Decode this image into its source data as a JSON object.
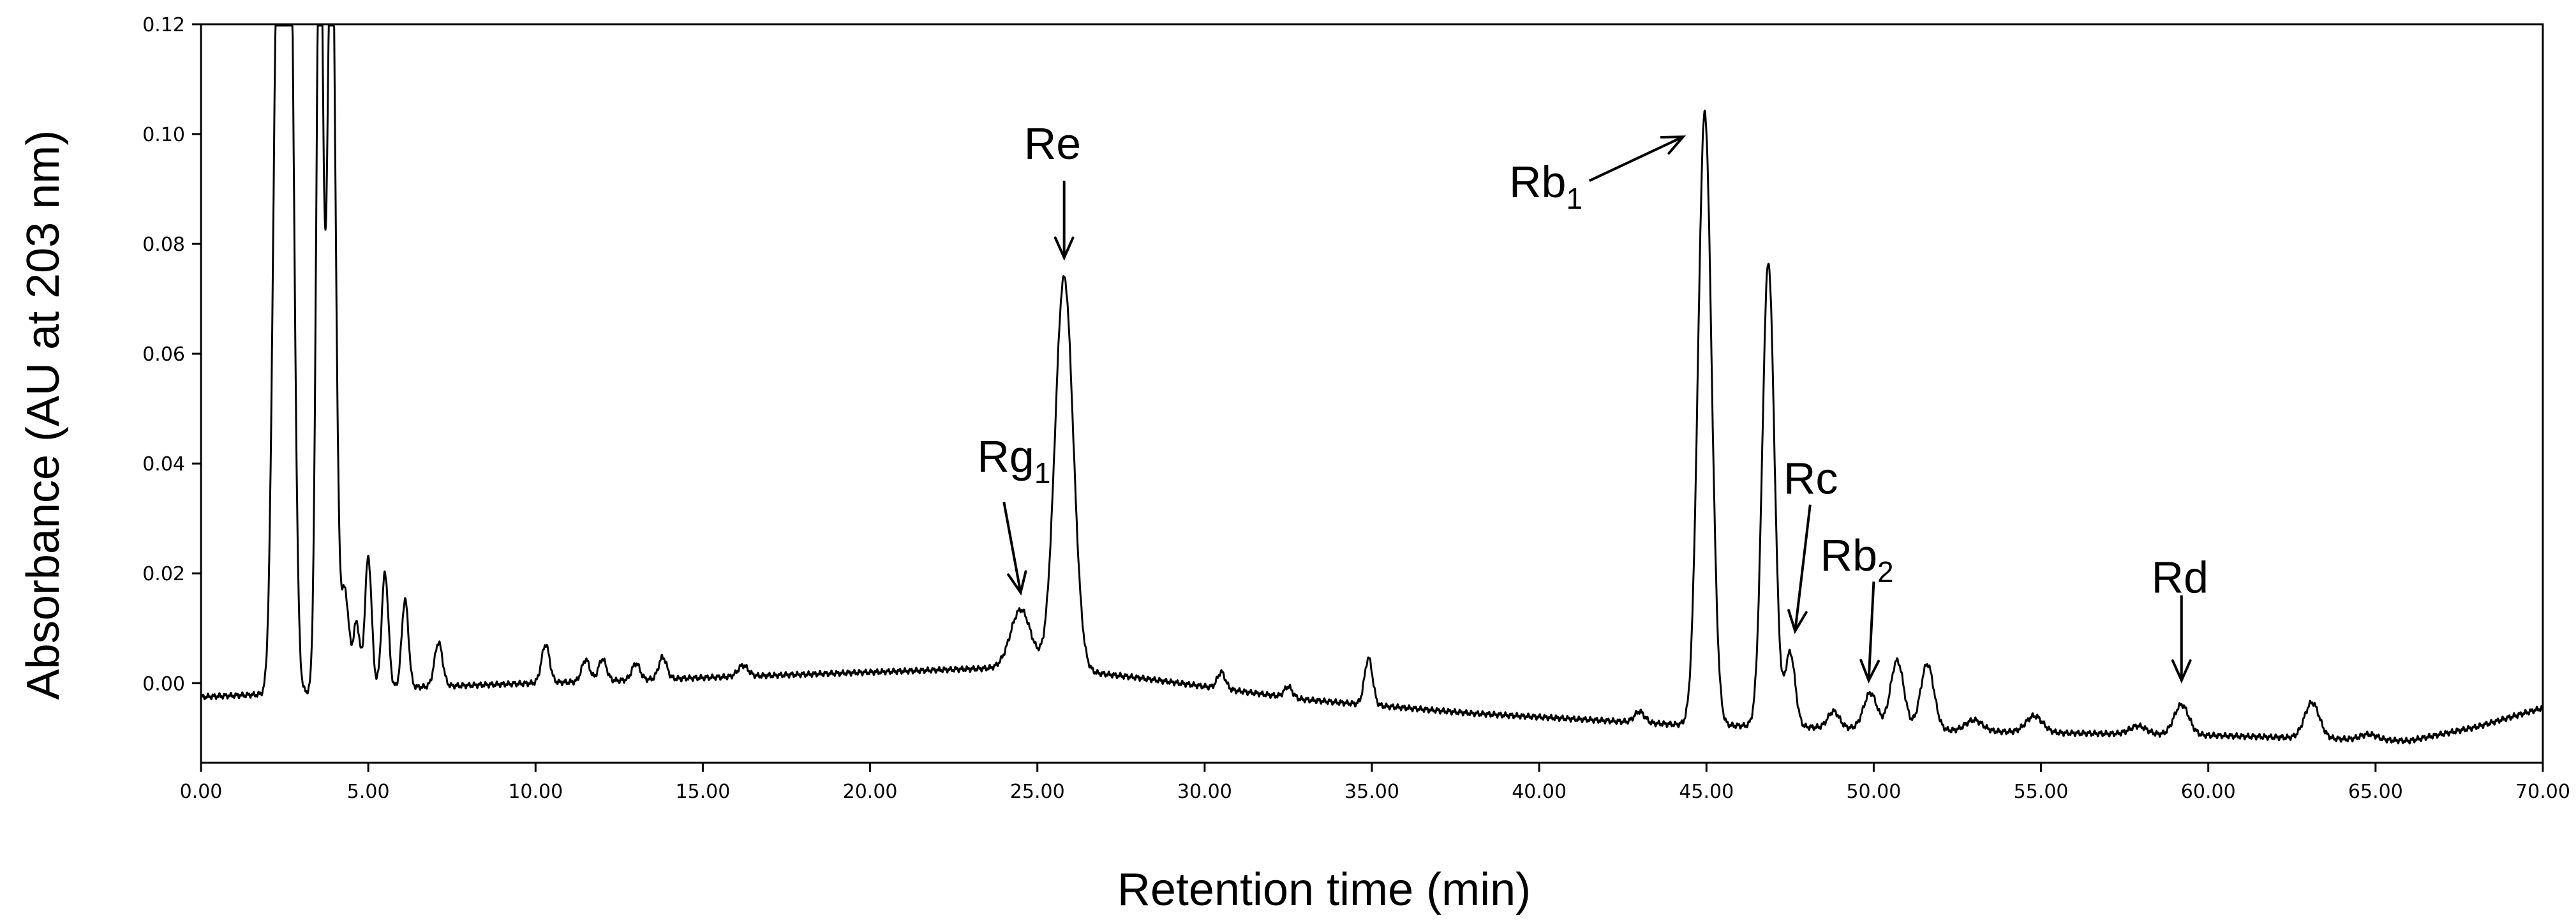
{
  "chart_data": {
    "type": "line",
    "title": "",
    "xlabel": "Retention time (min)",
    "ylabel": "Absorbance (AU at 203 nm)",
    "xlim": [
      0,
      70
    ],
    "ylim": [
      -0.0145,
      0.12
    ],
    "x_ticks": [
      "0.00",
      "5.00",
      "10.00",
      "15.00",
      "20.00",
      "25.00",
      "30.00",
      "35.00",
      "40.00",
      "45.00",
      "50.00",
      "55.00",
      "60.00",
      "65.00",
      "70.00"
    ],
    "y_ticks": [
      "0.00",
      "0.02",
      "0.04",
      "0.06",
      "0.08",
      "0.10",
      "0.12"
    ],
    "grid": false,
    "legend": "none",
    "line_color": "#000000",
    "baseline": [
      [
        0,
        -0.0025
      ],
      [
        2,
        -0.002
      ],
      [
        5,
        -0.001
      ],
      [
        10,
        0.0
      ],
      [
        15,
        0.001
      ],
      [
        20,
        0.002
      ],
      [
        25,
        0.003
      ],
      [
        28,
        0.001
      ],
      [
        33,
        -0.003
      ],
      [
        38,
        -0.0055
      ],
      [
        44,
        -0.0075
      ],
      [
        48,
        -0.008
      ],
      [
        55,
        -0.009
      ],
      [
        60,
        -0.0095
      ],
      [
        63,
        -0.01
      ],
      [
        66,
        -0.0105
      ],
      [
        68,
        -0.008
      ],
      [
        70,
        -0.0045
      ]
    ],
    "peaks": [
      {
        "x": 2.3,
        "h": 0.14,
        "w": 0.14
      },
      {
        "x": 2.65,
        "h": 0.15,
        "w": 0.13
      },
      {
        "x": 3.55,
        "h": 0.15,
        "w": 0.1
      },
      {
        "x": 3.9,
        "h": 0.15,
        "w": 0.12
      },
      {
        "x": 4.3,
        "h": 0.018,
        "w": 0.12
      },
      {
        "x": 4.65,
        "h": 0.012,
        "w": 0.1
      },
      {
        "x": 5.0,
        "h": 0.024,
        "w": 0.1
      },
      {
        "x": 5.5,
        "h": 0.021,
        "w": 0.1
      },
      {
        "x": 6.1,
        "h": 0.016,
        "w": 0.1
      },
      {
        "x": 7.1,
        "h": 0.008,
        "w": 0.12
      },
      {
        "x": 10.3,
        "h": 0.007,
        "w": 0.12
      },
      {
        "x": 11.5,
        "h": 0.004,
        "w": 0.12
      },
      {
        "x": 12.0,
        "h": 0.004,
        "w": 0.12
      },
      {
        "x": 13.0,
        "h": 0.003,
        "w": 0.12
      },
      {
        "x": 13.8,
        "h": 0.004,
        "w": 0.12
      },
      {
        "x": 16.2,
        "h": 0.002,
        "w": 0.15
      },
      {
        "x": 24.5,
        "h": 0.0105,
        "w": 0.3
      },
      {
        "x": 25.8,
        "h": 0.0715,
        "w": 0.27
      },
      {
        "x": 30.5,
        "h": 0.003,
        "w": 0.12
      },
      {
        "x": 32.5,
        "h": 0.002,
        "w": 0.12
      },
      {
        "x": 34.9,
        "h": 0.0085,
        "w": 0.12
      },
      {
        "x": 43.0,
        "h": 0.002,
        "w": 0.15
      },
      {
        "x": 44.95,
        "h": 0.1115,
        "w": 0.2
      },
      {
        "x": 46.85,
        "h": 0.0845,
        "w": 0.18
      },
      {
        "x": 47.5,
        "h": 0.0135,
        "w": 0.15
      },
      {
        "x": 48.8,
        "h": 0.003,
        "w": 0.17
      },
      {
        "x": 49.9,
        "h": 0.0065,
        "w": 0.2
      },
      {
        "x": 50.7,
        "h": 0.0125,
        "w": 0.2
      },
      {
        "x": 51.6,
        "h": 0.012,
        "w": 0.2
      },
      {
        "x": 53.0,
        "h": 0.002,
        "w": 0.25
      },
      {
        "x": 54.8,
        "h": 0.003,
        "w": 0.25
      },
      {
        "x": 57.9,
        "h": 0.0015,
        "w": 0.25
      },
      {
        "x": 59.2,
        "h": 0.0055,
        "w": 0.22
      },
      {
        "x": 63.1,
        "h": 0.0065,
        "w": 0.22
      },
      {
        "x": 64.8,
        "h": 0.001,
        "w": 0.25
      }
    ],
    "annotations": [
      {
        "name": "Rg1",
        "base": "Rg",
        "sub": "1",
        "tx": 23.2,
        "ty": 0.0385,
        "ax0": 24.0,
        "ay0": 0.033,
        "ax1": 24.5,
        "ay1": 0.0165
      },
      {
        "name": "Re",
        "base": "Re",
        "sub": "",
        "tx": 24.6,
        "ty": 0.0955,
        "ax0": 25.8,
        "ay0": 0.0915,
        "ax1": 25.8,
        "ay1": 0.0775
      },
      {
        "name": "Rb1",
        "base": "Rb",
        "sub": "1",
        "tx": 39.1,
        "ty": 0.0885,
        "ax0": 41.5,
        "ay0": 0.0915,
        "ax1": 44.3,
        "ay1": 0.0995
      },
      {
        "name": "Rc",
        "base": "Rc",
        "sub": "",
        "tx": 47.3,
        "ty": 0.0345,
        "ax0": 48.1,
        "ay0": 0.0325,
        "ax1": 47.65,
        "ay1": 0.0095
      },
      {
        "name": "Rb2",
        "base": "Rb",
        "sub": "2",
        "tx": 48.4,
        "ty": 0.0205,
        "ax0": 50.0,
        "ay0": 0.0185,
        "ax1": 49.85,
        "ay1": 0.0005
      },
      {
        "name": "Rd",
        "base": "Rd",
        "sub": "",
        "tx": 58.3,
        "ty": 0.0165,
        "ax0": 59.2,
        "ay0": 0.016,
        "ax1": 59.2,
        "ay1": 0.0005
      }
    ]
  }
}
